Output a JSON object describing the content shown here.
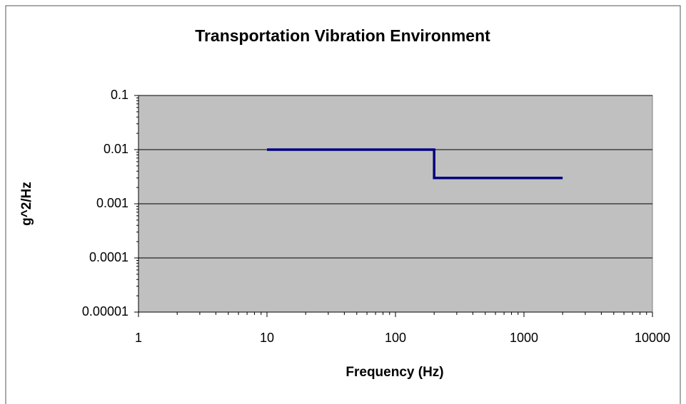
{
  "chart_data": {
    "type": "line",
    "title": "Transportation Vibration Environment",
    "xlabel": "Frequency (Hz)",
    "ylabel": "g^2/Hz",
    "x": [
      10,
      200,
      200,
      2000
    ],
    "values": [
      0.01,
      0.01,
      0.003,
      0.003
    ],
    "color": "#000080",
    "xscale": "log",
    "yscale": "log",
    "xlim": [
      1,
      10000
    ],
    "xticks": [
      1,
      10,
      100,
      1000,
      10000
    ],
    "ylim": [
      1e-05,
      0.1
    ],
    "yticks": [
      0.1,
      0.01,
      0.001,
      0.0001,
      1e-05
    ],
    "grid": true
  }
}
